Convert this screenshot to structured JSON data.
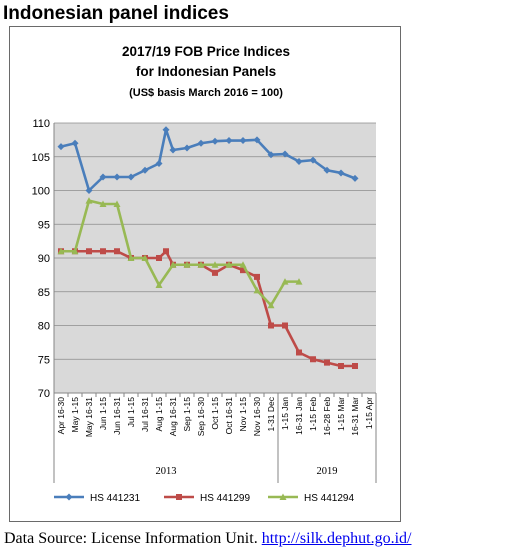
{
  "heading": "Indonesian panel indices",
  "source": {
    "prefix": "Data Source: License Information Unit.",
    "link_text": "http://silk.dephut.go.id/"
  },
  "chart_data": {
    "type": "line",
    "title": "2017/19 FOB Price Indices",
    "subtitle": "for Indonesian Panels",
    "note": "(US$ basis March 2016 = 100)",
    "ylim": [
      70,
      110
    ],
    "yticks": [
      70,
      75,
      80,
      85,
      90,
      95,
      100,
      105,
      110
    ],
    "grid": true,
    "legend_position": "bottom",
    "plot_background": "#d9d9d9",
    "categories": [
      "Apr 16-30",
      "May 1-15",
      "May 16-31",
      "Jun 1-15",
      "Jun 16-31",
      "Jul 1-15",
      "Jul 16-31",
      "Aug 1-15",
      "Aug 16-31",
      "Sep 1-15",
      "Sep 16-30",
      "Oct 1-15",
      "Oct 16-31",
      "Nov 1-15",
      "Nov 16-30",
      "1-31 Dec",
      "1-15 Jan",
      "16-31 Jan",
      "1-15 Feb",
      "16-28 Feb",
      "1-15 Mar",
      "16-31 Mar",
      "1-15 Apr"
    ],
    "year_groups": [
      {
        "label": "2013",
        "start": 0,
        "end": 15
      },
      {
        "label": "2019",
        "start": 16,
        "end": 22
      }
    ],
    "series": [
      {
        "name": "HS 441231",
        "color": "#4a7ebb",
        "marker": "diamond",
        "points": [
          [
            0,
            106.5
          ],
          [
            1,
            107
          ],
          [
            2,
            100
          ],
          [
            3,
            102
          ],
          [
            4,
            102
          ],
          [
            5,
            102
          ],
          [
            6,
            103
          ],
          [
            7,
            104
          ],
          [
            7.5,
            109
          ],
          [
            8,
            106
          ],
          [
            9,
            106.3
          ],
          [
            10,
            107
          ],
          [
            11,
            107.3
          ],
          [
            12,
            107.4
          ],
          [
            13,
            107.4
          ],
          [
            14,
            107.5
          ],
          [
            15,
            105.3
          ],
          [
            16,
            105.4
          ],
          [
            17,
            104.3
          ],
          [
            18,
            104.5
          ],
          [
            19,
            103
          ],
          [
            20,
            102.6
          ],
          [
            21,
            101.8
          ]
        ]
      },
      {
        "name": "HS 441299",
        "color": "#be4b48",
        "marker": "square",
        "points": [
          [
            0,
            91
          ],
          [
            1,
            91
          ],
          [
            2,
            91
          ],
          [
            3,
            91
          ],
          [
            4,
            91
          ],
          [
            5,
            90
          ],
          [
            6,
            90
          ],
          [
            7,
            90
          ],
          [
            7.5,
            91
          ],
          [
            8,
            89
          ],
          [
            9,
            89
          ],
          [
            10,
            89
          ],
          [
            11,
            87.8
          ],
          [
            12,
            89
          ],
          [
            13,
            88.2
          ],
          [
            14,
            87.2
          ],
          [
            15,
            80
          ],
          [
            16,
            80
          ],
          [
            17,
            76
          ],
          [
            18,
            75
          ],
          [
            19,
            74.5
          ],
          [
            20,
            74
          ],
          [
            21,
            74
          ]
        ]
      },
      {
        "name": "HS 441294",
        "color": "#98b954",
        "marker": "triangle",
        "points": [
          [
            0,
            91
          ],
          [
            1,
            91
          ],
          [
            2,
            98.5
          ],
          [
            3,
            98
          ],
          [
            4,
            98
          ],
          [
            5,
            90
          ],
          [
            6,
            90
          ],
          [
            7,
            86
          ],
          [
            8,
            89
          ],
          [
            9,
            89
          ],
          [
            10,
            89
          ],
          [
            11,
            89
          ],
          [
            12,
            89
          ],
          [
            13,
            89
          ],
          [
            14,
            85.2
          ],
          [
            15,
            83
          ],
          [
            16,
            86.5
          ],
          [
            17,
            86.5
          ]
        ]
      }
    ]
  }
}
